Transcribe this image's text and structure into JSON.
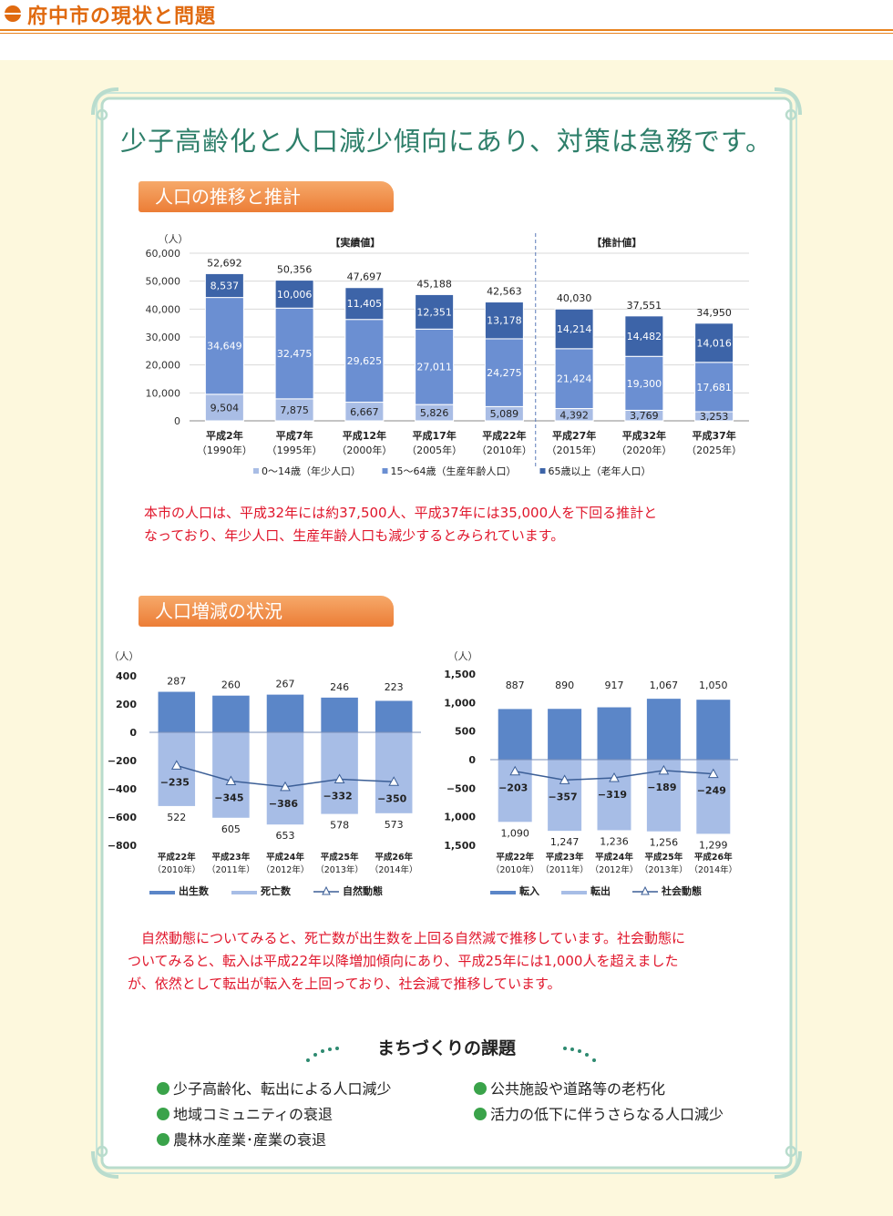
{
  "header": {
    "section_title": "府中市の現状と問題",
    "color": "#e06a10"
  },
  "headline": "少子高齢化と人口減少傾向にあり、対策は急務です。",
  "tabs": {
    "population": "人口の推移と推計",
    "change": "人口増減の状況"
  },
  "paragraphs": {
    "population_1": "本市の人口は、平成32年には約37,500人、平成37年には35,000人を下回る推計と",
    "population_2": "なっており、年少人口、生産年齢人口も減少するとみられています。",
    "change_1": "　自然動態についてみると、死亡数が出生数を上回る自然減で推移しています。社会動態に",
    "change_2": "ついてみると、転入は平成22年以降増加傾向にあり、平成25年には1,000人を超えました",
    "change_3": "が、依然として転出が転入を上回っており、社会減で推移しています。"
  },
  "kadai": {
    "title": "まちづくりの課題",
    "items": [
      "少子高齢化、転出による人口減少",
      "地域コミュニティの衰退",
      "農林水産業･産業の衰退",
      "公共施設や道路等の老朽化",
      "活力の低下に伴うさらなる人口減少"
    ]
  },
  "chart_data": [
    {
      "type": "bar",
      "stacked": true,
      "unit_label": "（人）",
      "categories": [
        "平成2年",
        "平成7年",
        "平成12年",
        "平成17年",
        "平成22年",
        "平成27年",
        "平成32年",
        "平成37年"
      ],
      "category_sub": [
        "（1990年）",
        "（1995年）",
        "（2000年）",
        "（2005年）",
        "（2010年）",
        "（2015年）",
        "（2020年）",
        "（2025年）"
      ],
      "series": [
        {
          "name": "0～14歳（年少人口）",
          "values": [
            9504,
            7875,
            6667,
            5826,
            5089,
            4392,
            3769,
            3253
          ],
          "color": "#a9bde5"
        },
        {
          "name": "15～64歳（生産年齢人口）",
          "values": [
            34649,
            32475,
            29625,
            27011,
            24275,
            21424,
            19300,
            17681
          ],
          "color": "#6b8fd2"
        },
        {
          "name": "65歳以上（老年人口）",
          "values": [
            8537,
            10006,
            11405,
            12351,
            13178,
            14214,
            14482,
            14016
          ],
          "color": "#3d64a8"
        }
      ],
      "totals": [
        52692,
        50356,
        47697,
        45188,
        42563,
        40030,
        37551,
        34950
      ],
      "ylim": [
        0,
        60000
      ],
      "yticks": [
        0,
        10000,
        20000,
        30000,
        40000,
        50000,
        60000
      ],
      "ytick_labels": [
        "0",
        "10,000",
        "20,000",
        "30,000",
        "40,000",
        "50,000",
        "60,000"
      ],
      "annotations": [
        "【実績値】",
        "【推計値】"
      ],
      "grid": true,
      "legend": "bottom"
    },
    {
      "type": "bar",
      "unit_label": "（人）",
      "categories": [
        "平成22年",
        "平成23年",
        "平成24年",
        "平成25年",
        "平成26年"
      ],
      "category_sub": [
        "（2010年）",
        "（2011年）",
        "（2012年）",
        "（2013年）",
        "（2014年）"
      ],
      "series": [
        {
          "name": "出生数",
          "values": [
            287,
            260,
            267,
            246,
            223
          ],
          "color": "#5b86c8"
        },
        {
          "name": "死亡数",
          "values": [
            522,
            605,
            653,
            578,
            573
          ],
          "color": "#a7bde6"
        },
        {
          "name": "自然動態",
          "values": [
            -235,
            -345,
            -386,
            -332,
            -350
          ],
          "type": "line",
          "color": "#3b5e96"
        }
      ],
      "ylim": [
        -800,
        400
      ],
      "yticks": [
        -800,
        -600,
        -400,
        -200,
        0,
        200,
        400
      ],
      "ytick_labels": [
        "−800",
        "−600",
        "−400",
        "−200",
        "0",
        "200",
        "400"
      ],
      "legend": "bottom"
    },
    {
      "type": "bar",
      "unit_label": "（人）",
      "categories": [
        "平成22年",
        "平成23年",
        "平成24年",
        "平成25年",
        "平成26年"
      ],
      "category_sub": [
        "（2010年）",
        "（2011年）",
        "（2012年）",
        "（2013年）",
        "（2014年）"
      ],
      "series": [
        {
          "name": "転入",
          "values": [
            887,
            890,
            917,
            1067,
            1050
          ],
          "color": "#5b86c8"
        },
        {
          "name": "転出",
          "values": [
            1090,
            1247,
            1236,
            1256,
            1299
          ],
          "color": "#a7bde6"
        },
        {
          "name": "社会動態",
          "values": [
            -203,
            -357,
            -319,
            -189,
            -249
          ],
          "type": "line",
          "color": "#3b5e96"
        }
      ],
      "ylim": [
        -1500,
        1500
      ],
      "yticks": [
        -1500,
        -1000,
        -500,
        0,
        500,
        1000,
        1500
      ],
      "ytick_labels": [
        "−1,500",
        "−1,000",
        "−500",
        "0",
        "500",
        "1,000",
        "1,500"
      ],
      "legend": "bottom"
    }
  ]
}
